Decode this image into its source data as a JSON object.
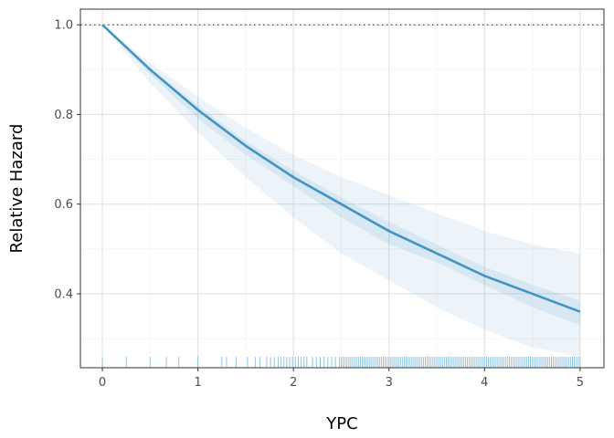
{
  "chart_data": {
    "type": "line",
    "xlabel": "YPC",
    "ylabel": "Relative Hazard",
    "xlim": [
      -0.23,
      5.25
    ],
    "ylim": [
      0.235,
      1.035
    ],
    "x_ticks": [
      0,
      1,
      2,
      3,
      4,
      5
    ],
    "y_ticks": [
      0.4,
      0.6,
      0.8,
      1.0
    ],
    "x_tick_labels": [
      "0",
      "1",
      "2",
      "3",
      "4",
      "5"
    ],
    "y_tick_labels": [
      "0.4",
      "0.6",
      "0.8",
      "1.0"
    ],
    "grid": true,
    "reference_line": {
      "y": 1.0,
      "style": "dotted"
    },
    "series": [
      {
        "type": "line",
        "x": [
          0,
          0.5,
          1,
          1.5,
          2,
          2.5,
          3,
          3.5,
          4,
          4.5,
          5
        ],
        "y": [
          1.0,
          0.9,
          0.81,
          0.73,
          0.66,
          0.6,
          0.54,
          0.49,
          0.44,
          0.4,
          0.36
        ],
        "color": "#4393c3"
      },
      {
        "type": "band",
        "x": [
          0,
          0.5,
          1,
          1.5,
          2,
          2.5,
          3,
          3.5,
          4,
          4.5,
          5
        ],
        "lower": [
          1.0,
          0.89,
          0.79,
          0.71,
          0.64,
          0.57,
          0.51,
          0.47,
          0.42,
          0.37,
          0.33
        ],
        "upper": [
          1.0,
          0.905,
          0.82,
          0.74,
          0.675,
          0.615,
          0.56,
          0.51,
          0.46,
          0.42,
          0.385
        ],
        "color": "#4393c3",
        "opacity": 0.12
      },
      {
        "type": "band",
        "x": [
          0,
          0.5,
          1,
          1.5,
          2,
          2.5,
          3,
          3.5,
          4,
          4.5,
          5
        ],
        "lower": [
          1.0,
          0.87,
          0.76,
          0.66,
          0.57,
          0.49,
          0.43,
          0.37,
          0.32,
          0.28,
          0.26
        ],
        "upper": [
          1.0,
          0.915,
          0.84,
          0.77,
          0.71,
          0.66,
          0.62,
          0.58,
          0.54,
          0.51,
          0.49
        ],
        "color": "#4393c3",
        "opacity": 0.1
      }
    ],
    "rug": {
      "color": "#92c5de",
      "x": [
        0,
        0.25,
        0.5,
        0.67,
        0.8,
        1.0,
        1.25,
        1.3,
        1.4,
        1.52,
        1.6,
        1.65,
        1.72,
        1.76,
        1.8,
        1.84,
        1.87,
        1.9,
        1.93,
        1.96,
        1.99,
        2.02,
        2.05,
        2.08,
        2.11,
        2.14,
        2.2,
        2.24,
        2.28,
        2.32,
        2.36,
        2.4,
        2.44,
        2.48,
        2.5,
        2.52,
        2.54,
        2.56,
        2.58,
        2.6,
        2.62,
        2.64,
        2.66,
        2.68,
        2.7,
        2.72,
        2.74,
        2.76,
        2.78,
        2.8,
        2.82,
        2.84,
        2.86,
        2.88,
        2.9,
        2.92,
        2.94,
        2.96,
        2.98,
        3.0,
        3.02,
        3.04,
        3.06,
        3.08,
        3.1,
        3.12,
        3.14,
        3.16,
        3.18,
        3.2,
        3.22,
        3.24,
        3.26,
        3.28,
        3.3,
        3.32,
        3.34,
        3.36,
        3.38,
        3.4,
        3.42,
        3.44,
        3.46,
        3.48,
        3.5,
        3.52,
        3.54,
        3.56,
        3.58,
        3.6,
        3.62,
        3.64,
        3.66,
        3.68,
        3.7,
        3.72,
        3.74,
        3.76,
        3.78,
        3.8,
        3.82,
        3.84,
        3.86,
        3.88,
        3.9,
        3.92,
        3.94,
        3.96,
        3.98,
        4.0,
        4.02,
        4.04,
        4.06,
        4.08,
        4.1,
        4.12,
        4.14,
        4.16,
        4.18,
        4.2,
        4.22,
        4.24,
        4.26,
        4.28,
        4.3,
        4.32,
        4.34,
        4.36,
        4.38,
        4.4,
        4.42,
        4.44,
        4.46,
        4.48,
        4.5,
        4.52,
        4.54,
        4.56,
        4.58,
        4.6,
        4.62,
        4.64,
        4.66,
        4.68,
        4.7,
        4.72,
        4.74,
        4.76,
        4.78,
        4.8,
        4.82,
        4.84,
        4.86,
        4.88,
        4.9,
        4.92,
        4.94,
        4.96,
        4.98,
        5.0
      ]
    }
  }
}
